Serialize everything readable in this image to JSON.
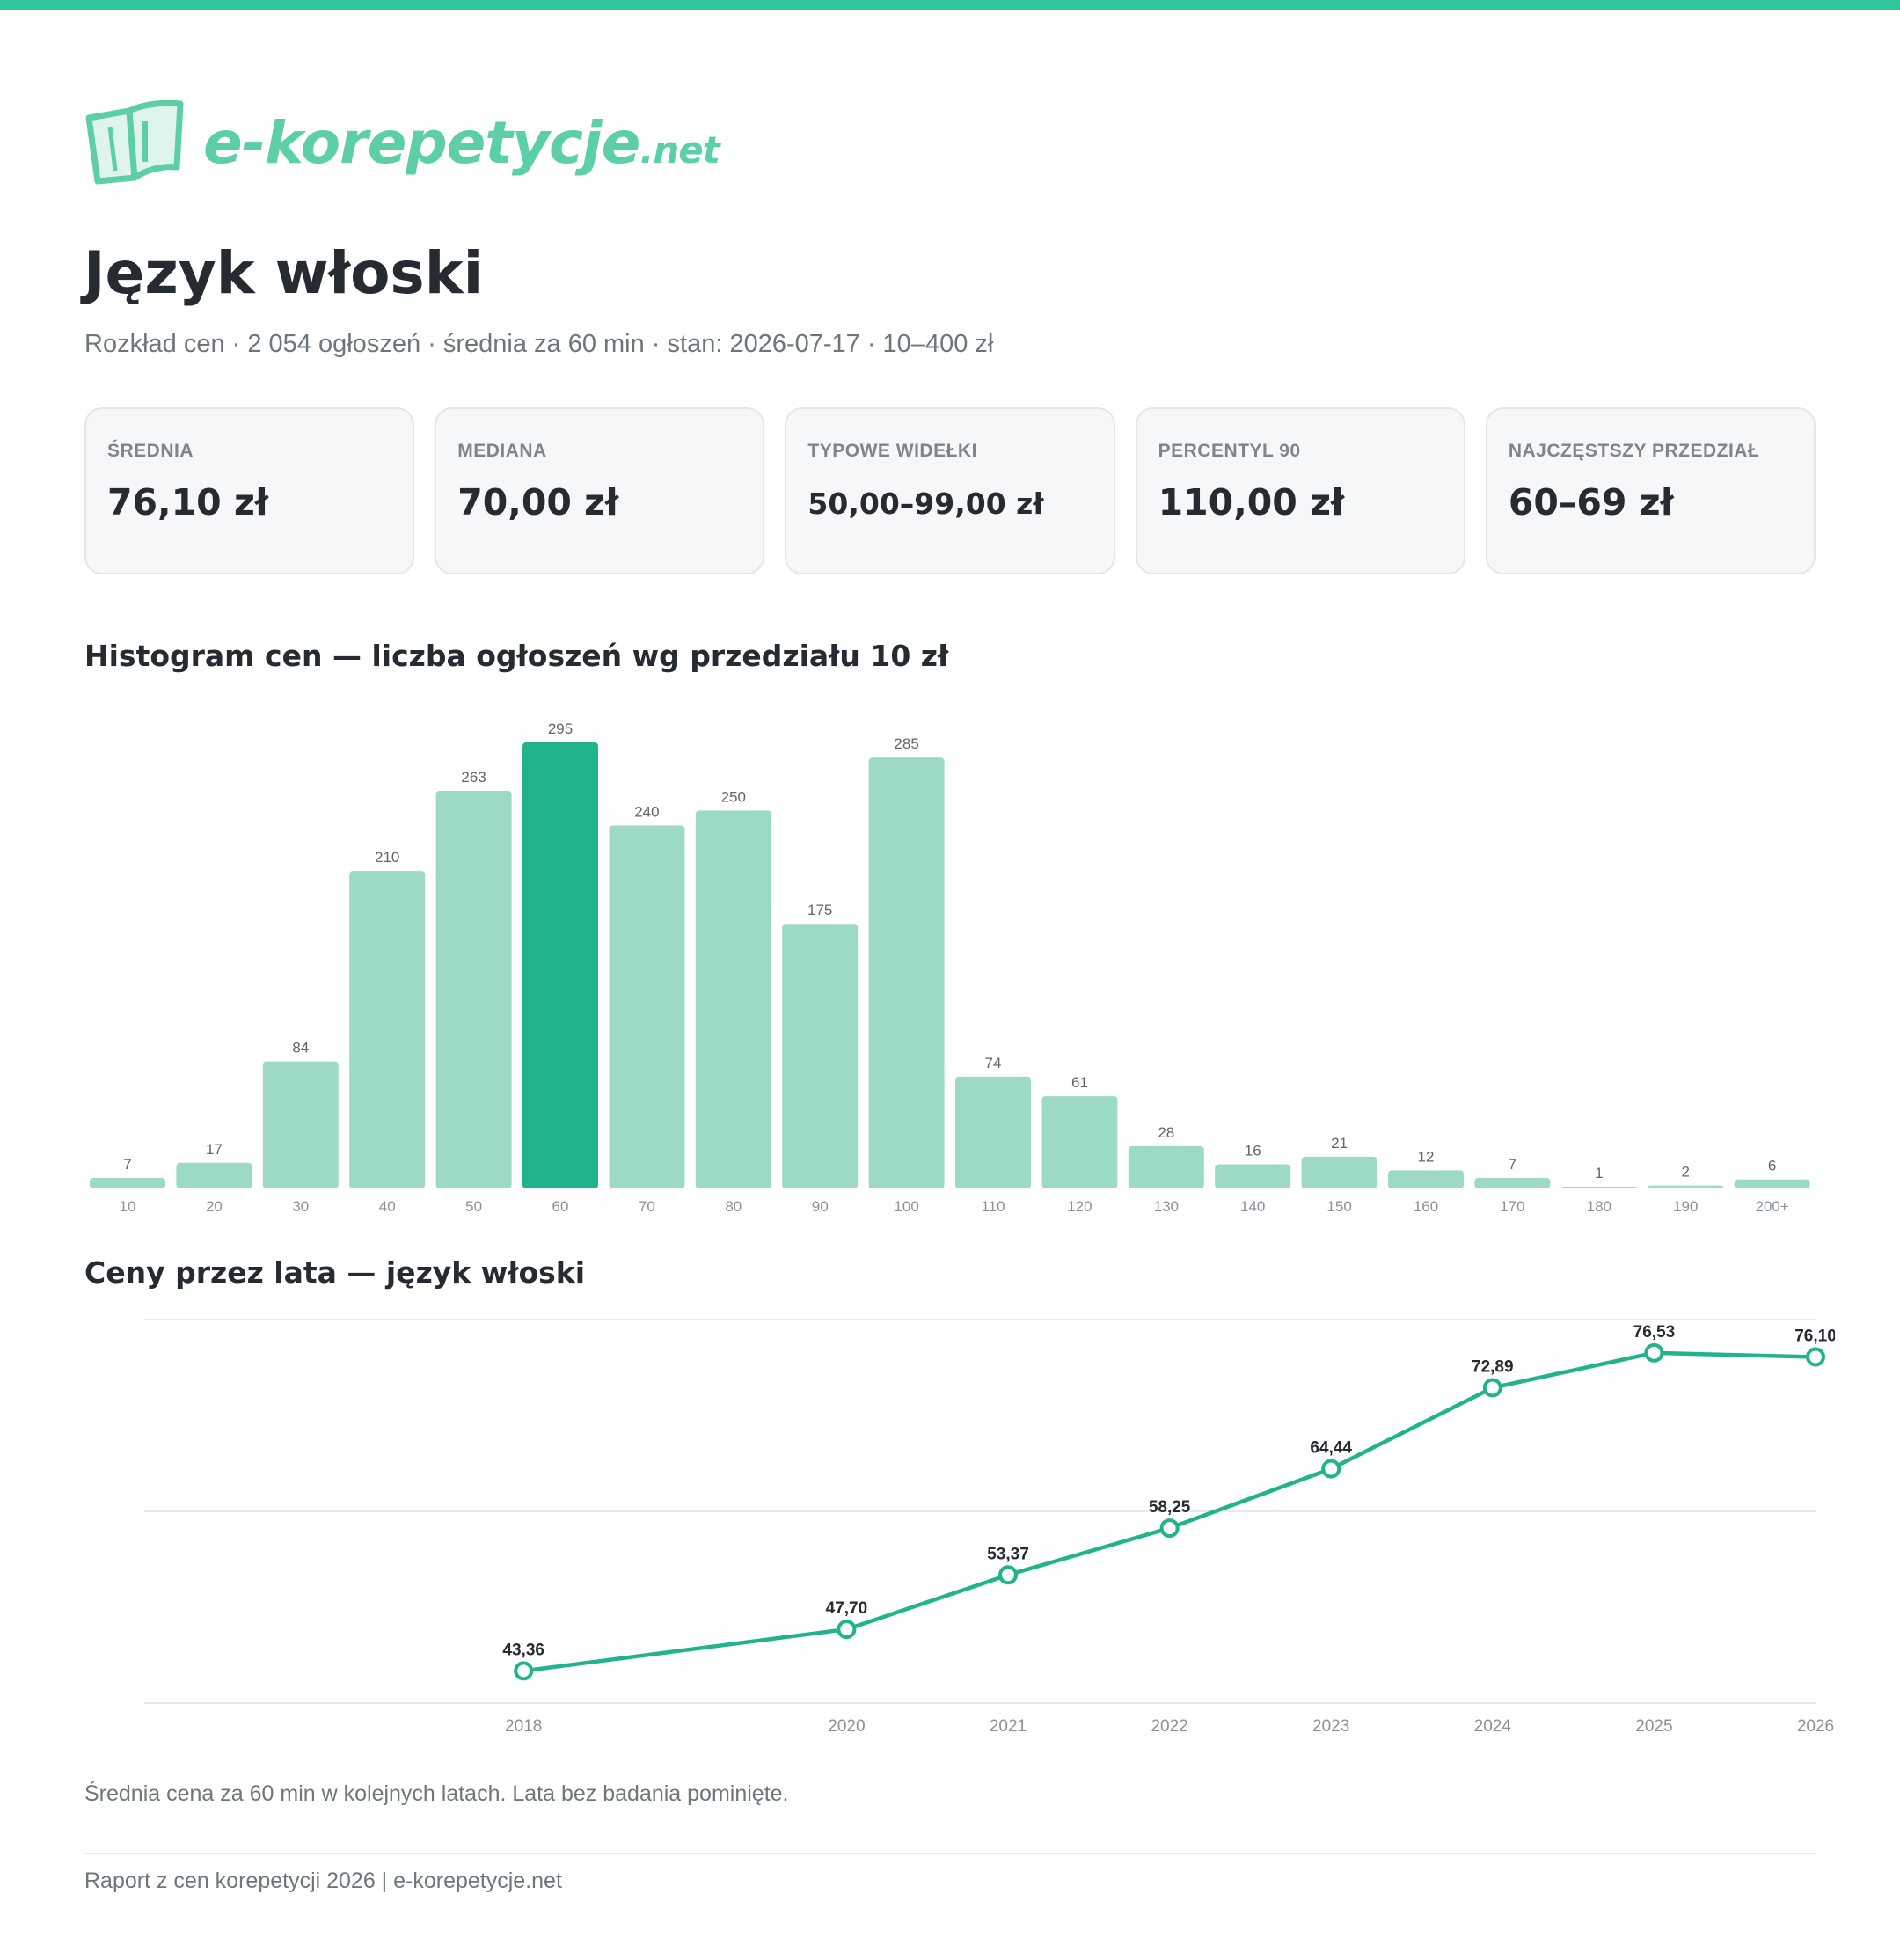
{
  "brand": {
    "name": "e-korepetycje",
    "tld": ".net",
    "accent": "#2ec79a"
  },
  "header": {
    "title": "Język włoski",
    "subtitle": "Rozkład cen · 2 054 ogłoszeń · średnia za 60 min · stan: 2026-07-17 · 10–400 zł"
  },
  "stats": [
    {
      "label": "ŚREDNIA",
      "value": "76,10 zł"
    },
    {
      "label": "MEDIANA",
      "value": "70,00 zł"
    },
    {
      "label": "TYPOWE WIDEŁKI",
      "value": "50,00–99,00 zł"
    },
    {
      "label": "PERCENTYL 90",
      "value": "110,00 zł"
    },
    {
      "label": "NAJCZĘSTSZY PRZEDZIAŁ",
      "value": "60–69 zł"
    }
  ],
  "chart_data": [
    {
      "type": "bar",
      "title": "Histogram cen — liczba ogłoszeń wg przedziału 10 zł",
      "categories": [
        "10",
        "20",
        "30",
        "40",
        "50",
        "60",
        "70",
        "80",
        "90",
        "100",
        "110",
        "120",
        "130",
        "140",
        "150",
        "160",
        "170",
        "180",
        "190",
        "200+"
      ],
      "values": [
        7,
        17,
        84,
        210,
        263,
        295,
        240,
        250,
        175,
        285,
        74,
        61,
        28,
        16,
        21,
        12,
        7,
        1,
        2,
        6
      ],
      "highlight": "60",
      "colors": {
        "bar": "#9ddac3",
        "highlight": "#21b48b"
      },
      "grid": false
    },
    {
      "type": "line",
      "title": "Ceny przez lata — język włoski",
      "x": [
        "2018",
        "2020",
        "2021",
        "2022",
        "2023",
        "2024",
        "2025",
        "2026"
      ],
      "values": [
        43.36,
        47.7,
        53.37,
        58.25,
        64.44,
        72.89,
        76.53,
        76.1
      ],
      "labels": [
        "43,36",
        "47,70",
        "53,37",
        "58,25",
        "64,44",
        "72,89",
        "76,53",
        "76,10"
      ],
      "ylim": [
        40,
        80
      ],
      "grid": true,
      "colors": {
        "line": "#21b48b"
      }
    }
  ],
  "caption": "Średnia cena za 60 min w kolejnych latach. Lata bez badania pominięte.",
  "footer": "Raport z cen korepetycji 2026 | e-korepetycje.net"
}
